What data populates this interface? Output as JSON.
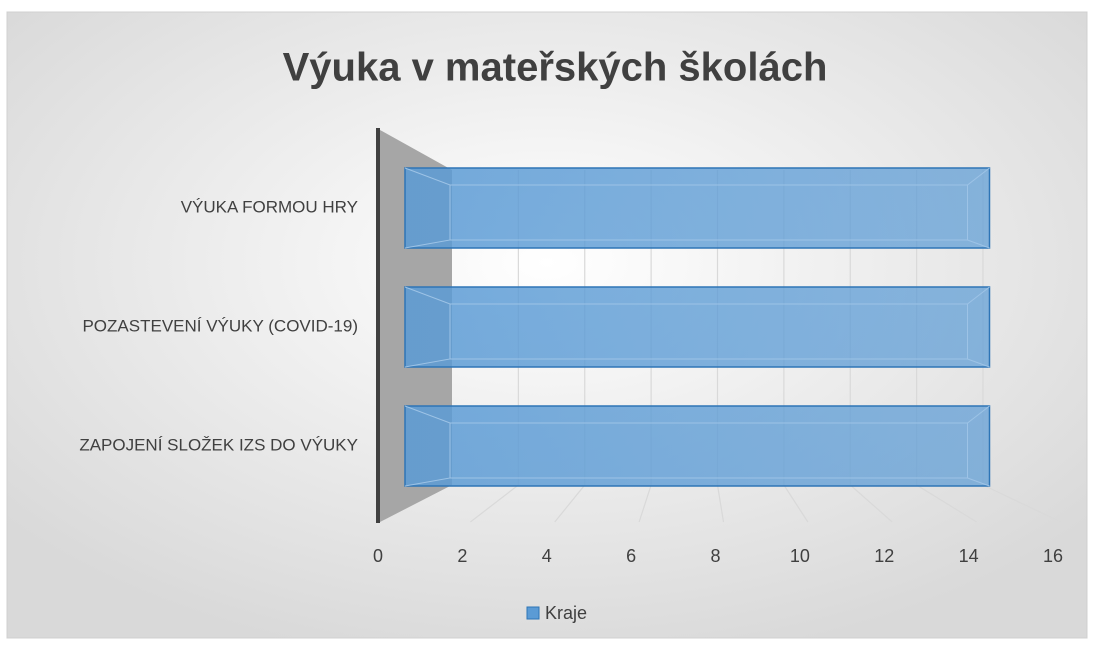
{
  "chart_data": {
    "type": "bar",
    "orientation": "horizontal",
    "title": "Výuka v mateřských školách",
    "categories": [
      "VÝUKA FORMOU HRY",
      "POZASTEVENÍ VÝUKY (COVID-19)",
      "ZAPOJENÍ SLOŽEK IZS DO VÝUKY"
    ],
    "series": [
      {
        "name": "Kraje",
        "color": "#5b9bd5",
        "values": [
          14,
          14,
          14
        ]
      }
    ],
    "xlim": [
      0,
      16
    ],
    "xticks": [
      0,
      2,
      4,
      6,
      8,
      10,
      12,
      14,
      16
    ],
    "grid": true,
    "legend": "bottom"
  }
}
